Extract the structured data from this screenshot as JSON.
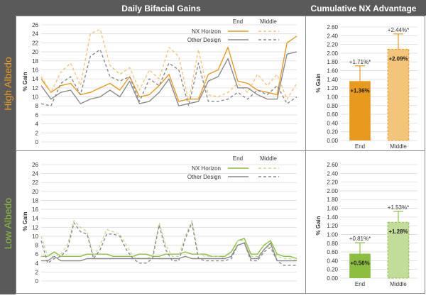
{
  "header": {
    "left_title": "Daily Bifacial Gains",
    "right_title": "Cumulative NX Advantage"
  },
  "rows": [
    {
      "label": "High Albedo",
      "color": "#e89a1f"
    },
    {
      "label": "Low Albedo",
      "color": "#8cbf3f"
    }
  ],
  "legend": {
    "col_end": "End",
    "col_middle": "Middle",
    "row_nx": "NX Horizon",
    "row_other": "Other Design"
  },
  "colors": {
    "header_bg": "#5a5a5a",
    "high_end": "#e89a1f",
    "high_middle": "#f3c57a",
    "low_end": "#8cbf3f",
    "low_middle": "#c2dd9a",
    "other": "#8a8a8a",
    "grid": "#dcdcdc"
  },
  "chart_data": [
    {
      "id": "high-line",
      "type": "line",
      "ylabel": "% Gain",
      "ylim": [
        0,
        26
      ],
      "yticks": [
        0,
        2,
        4,
        6,
        8,
        10,
        12,
        14,
        16,
        18,
        20,
        22,
        24,
        26
      ],
      "series": [
        {
          "name": "NX Horizon End",
          "style": "solid",
          "color": "#e89a1f",
          "values": [
            14,
            11,
            12.5,
            13,
            10.5,
            11,
            12,
            13,
            11.5,
            14.5,
            10,
            10.5,
            12.5,
            15,
            9,
            9.5,
            9.5,
            15,
            16,
            21,
            13.5,
            13,
            11.5,
            11,
            10.5,
            22,
            23.5
          ]
        },
        {
          "name": "NX Horizon Middle",
          "style": "dashed",
          "color": "#f3c57a",
          "values": [
            14.5,
            11,
            15.5,
            17.5,
            12.5,
            24,
            25,
            17,
            15,
            16.5,
            11.5,
            16,
            14,
            21,
            19,
            9,
            20.5,
            10.5,
            10,
            11,
            13,
            11,
            15,
            12.5,
            15,
            9.5,
            13
          ]
        },
        {
          "name": "Other Design End",
          "style": "solid",
          "color": "#8a8a8a",
          "values": [
            12.5,
            9.5,
            11,
            11.5,
            8.5,
            9.5,
            10,
            11.5,
            10,
            13.5,
            8.5,
            9,
            11,
            14,
            8,
            8.5,
            9,
            13.5,
            14.5,
            18.5,
            12,
            12,
            10.5,
            9.5,
            9.5,
            19.5,
            20
          ]
        },
        {
          "name": "Other Design Middle",
          "style": "dashed",
          "color": "#8a8a8a",
          "values": [
            8.5,
            8,
            13,
            14.5,
            10.5,
            19,
            20.5,
            14.5,
            13.5,
            14.5,
            9,
            14,
            12.5,
            17.5,
            16,
            8,
            17.5,
            9,
            9,
            9.5,
            11,
            9.5,
            11.5,
            10.5,
            12.5,
            8.5,
            10
          ]
        }
      ]
    },
    {
      "id": "high-bar",
      "type": "bar",
      "ylabel": "% Gain",
      "ylim": [
        0,
        2.6
      ],
      "yticks": [
        "0.00",
        "0.20",
        "0.40",
        "0.60",
        "0.80",
        "1.00",
        "1.20",
        "1.40",
        "1.60",
        "1.80",
        "2.00",
        "2.20",
        "2.40",
        "2.60"
      ],
      "categories": [
        "End",
        "Middle"
      ],
      "values": [
        1.36,
        2.09
      ],
      "value_labels": [
        "+1.36%",
        "+2.09%"
      ],
      "upper": [
        1.71,
        2.44
      ],
      "upper_labels": [
        "+1.71%*",
        "+2.44%*"
      ],
      "colors": [
        "#e89a1f",
        "#f3c57a"
      ],
      "error_color": "#e89a1f"
    },
    {
      "id": "low-line",
      "type": "line",
      "ylabel": "% Gain",
      "ylim": [
        0,
        26
      ],
      "yticks": [
        0,
        2,
        4,
        6,
        8,
        10,
        12,
        14,
        16,
        18,
        20,
        22,
        24,
        26
      ],
      "series": [
        {
          "name": "NX Horizon End",
          "style": "solid",
          "color": "#8cbf3f",
          "values": [
            5.5,
            5.5,
            6.5,
            5.5,
            5.5,
            5.5,
            5.5,
            6,
            6,
            6,
            6,
            5.5,
            5.5,
            5.5,
            5.5,
            6,
            6,
            5.5,
            5.5,
            6,
            6,
            6,
            6.5,
            6,
            6,
            6,
            5.5,
            5.5,
            5.5,
            6.5,
            9,
            9.5,
            6,
            6,
            8,
            9,
            6,
            5.5,
            5.5,
            5
          ]
        },
        {
          "name": "NX Horizon Middle",
          "style": "dashed",
          "color": "#c2dd9a",
          "values": [
            10,
            5.5,
            5.5,
            6,
            8,
            13.5,
            12,
            11,
            5.5,
            8,
            11.5,
            11,
            10.5,
            8,
            5.5,
            5,
            5,
            5.5,
            13,
            8,
            5.5,
            5.5,
            10,
            13.5,
            6,
            5.5,
            5.5,
            5.5,
            5,
            5.5,
            9,
            9,
            5.5,
            5.5,
            7,
            8,
            5.5,
            5,
            5,
            4.5
          ]
        },
        {
          "name": "Other Design End",
          "style": "solid",
          "color": "#8a8a8a",
          "values": [
            4.5,
            4.5,
            5.5,
            4.5,
            4.5,
            4.5,
            4.5,
            5,
            5,
            5,
            5,
            5,
            5,
            5,
            5,
            5,
            5,
            5,
            5,
            5,
            5,
            5,
            5.5,
            5,
            5,
            5,
            5,
            5,
            5,
            5.5,
            8,
            8.5,
            5,
            5,
            7,
            8.5,
            4.5,
            4.5,
            4.5,
            4.5
          ]
        },
        {
          "name": "Other Design Middle",
          "style": "dashed",
          "color": "#8a8a8a",
          "values": [
            9,
            4,
            5,
            5.5,
            7,
            13,
            11,
            10.5,
            5,
            7,
            10.5,
            10.5,
            10,
            7,
            5,
            4,
            4,
            5,
            12.5,
            7,
            4.5,
            4.5,
            9.5,
            13,
            5,
            4.5,
            4.5,
            4.5,
            4.5,
            5,
            8,
            8.5,
            4.5,
            4.5,
            6.5,
            7.5,
            4.5,
            3.5,
            3.5,
            3.5
          ]
        }
      ]
    },
    {
      "id": "low-bar",
      "type": "bar",
      "ylabel": "% Gain",
      "ylim": [
        0,
        2.6
      ],
      "yticks": [
        "0.00",
        "0.20",
        "0.40",
        "0.60",
        "0.80",
        "1.00",
        "1.20",
        "1.40",
        "1.60",
        "1.80",
        "2.00",
        "2.20",
        "2.40",
        "2.60"
      ],
      "categories": [
        "End",
        "Middle"
      ],
      "values": [
        0.56,
        1.28
      ],
      "value_labels": [
        "+0.56%",
        "+1.28%"
      ],
      "upper": [
        0.81,
        1.53
      ],
      "upper_labels": [
        "+0.81%*",
        "+1.53%*"
      ],
      "colors": [
        "#8cbf3f",
        "#c2dd9a"
      ],
      "error_color": "#8cbf3f"
    }
  ]
}
